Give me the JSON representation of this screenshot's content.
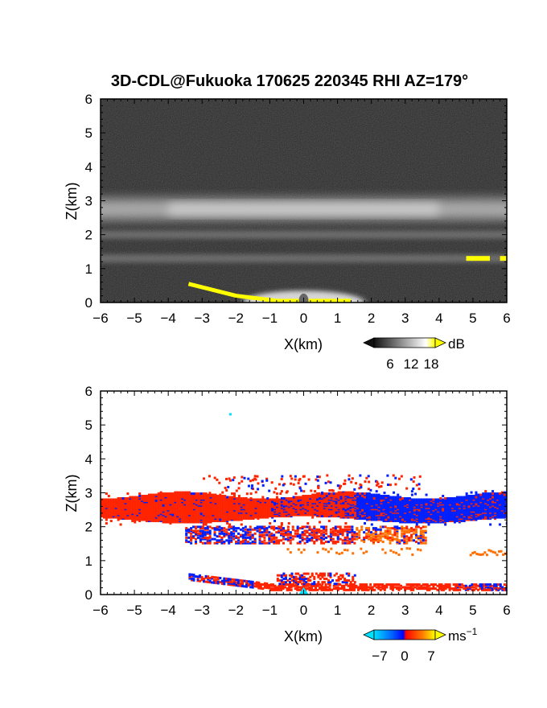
{
  "title": "3D-CDL@Fukuoka 170625 220345 RHI AZ=179°",
  "chart_data": [
    {
      "type": "heatmap",
      "quantity": "backscatter",
      "xlabel": "X(km)",
      "ylabel": "Z(km)",
      "xlim": [
        -6,
        6
      ],
      "ylim": [
        0,
        6
      ],
      "xticks": [
        "−6",
        "−5",
        "−4",
        "−3",
        "−2",
        "−1",
        "0",
        "1",
        "2",
        "3",
        "4",
        "5",
        "6"
      ],
      "yticks": [
        "0",
        "1",
        "2",
        "3",
        "4",
        "5",
        "6"
      ],
      "colorbar": {
        "unit": "dB",
        "ticks": [
          "6",
          "12",
          "18"
        ],
        "colors": [
          "#111111",
          "#ffffff",
          "#ffff00"
        ]
      },
      "layers_km": [
        {
          "feature": "bright layer",
          "z_center": 2.75,
          "x_range": [
            -6,
            6
          ]
        },
        {
          "feature": "weak layer",
          "z_center": 2.0,
          "x_range": [
            -6,
            6
          ]
        },
        {
          "feature": "weak layer",
          "z_center": 1.3,
          "x_range": [
            -6,
            6
          ]
        },
        {
          "feature": "strong return (yellow)",
          "z_center": 1.3,
          "x_range": [
            4.8,
            6
          ]
        },
        {
          "feature": "strong return (yellow)",
          "z_center": 0.25,
          "x_range": [
            -3.4,
            1.4
          ]
        }
      ]
    },
    {
      "type": "heatmap",
      "quantity": "doppler velocity",
      "xlabel": "X(km)",
      "ylabel": "Z(km)",
      "xlim": [
        -6,
        6
      ],
      "ylim": [
        0,
        6
      ],
      "xticks": [
        "−6",
        "−5",
        "−4",
        "−3",
        "−2",
        "−1",
        "0",
        "1",
        "2",
        "3",
        "4",
        "5",
        "6"
      ],
      "yticks": [
        "0",
        "1",
        "2",
        "3",
        "4",
        "5",
        "6"
      ],
      "colorbar": {
        "unit": "ms",
        "unit_exponent": "−1",
        "ticks": [
          "−7",
          "0",
          "7"
        ],
        "colors": [
          "#00e0ff",
          "#0060ff",
          "#0000ff",
          "#ff0000",
          "#ff8000",
          "#ffff00"
        ]
      },
      "layers_km": [
        {
          "feature": "red (positive) layer",
          "z_center": 2.75,
          "x_range": [
            -6,
            2
          ]
        },
        {
          "feature": "blue (negative) layer",
          "z_center": 2.6,
          "x_range": [
            2,
            6
          ]
        },
        {
          "feature": "red/blue layer",
          "z_center": 1.9,
          "x_range": [
            -3.5,
            3.5
          ]
        },
        {
          "feature": "orange layer",
          "z_center": 1.3,
          "x_range": [
            -0.5,
            3.5
          ]
        },
        {
          "feature": "orange return",
          "z_center": 1.25,
          "x_range": [
            4.9,
            6
          ]
        },
        {
          "feature": "near-ground layer",
          "z_center": 0.3,
          "x_range": [
            -3.4,
            6
          ]
        }
      ]
    }
  ]
}
